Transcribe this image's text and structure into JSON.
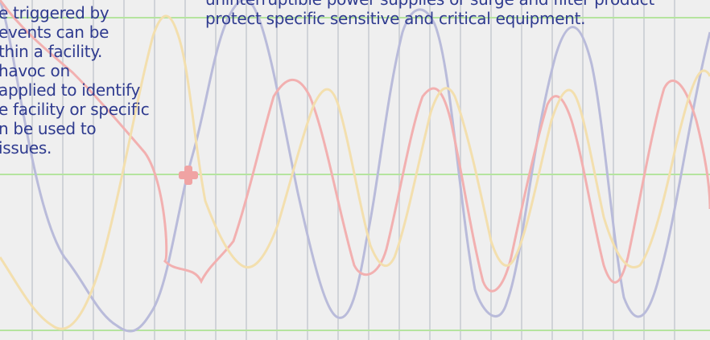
{
  "left_text": {
    "lines": [
      "e triggered by",
      "events can be",
      "thin a facility.",
      "havoc on",
      "applied to identify",
      "e facility or specific",
      "n be used to",
      "issues."
    ]
  },
  "right_text": {
    "lines": [
      "uninterruptible power supplies or surge and filter product",
      "protect specific sensitive and critical equipment."
    ]
  },
  "waveform": {
    "colors": {
      "grid_vertical": "#d0d3d8",
      "grid_horizontal": "#b5e49f",
      "blue_wave": "#b9bbda",
      "red_wave": "#f2b0b0",
      "yellow_wave": "#f3dfae",
      "marker": "#f0a3a3"
    }
  }
}
